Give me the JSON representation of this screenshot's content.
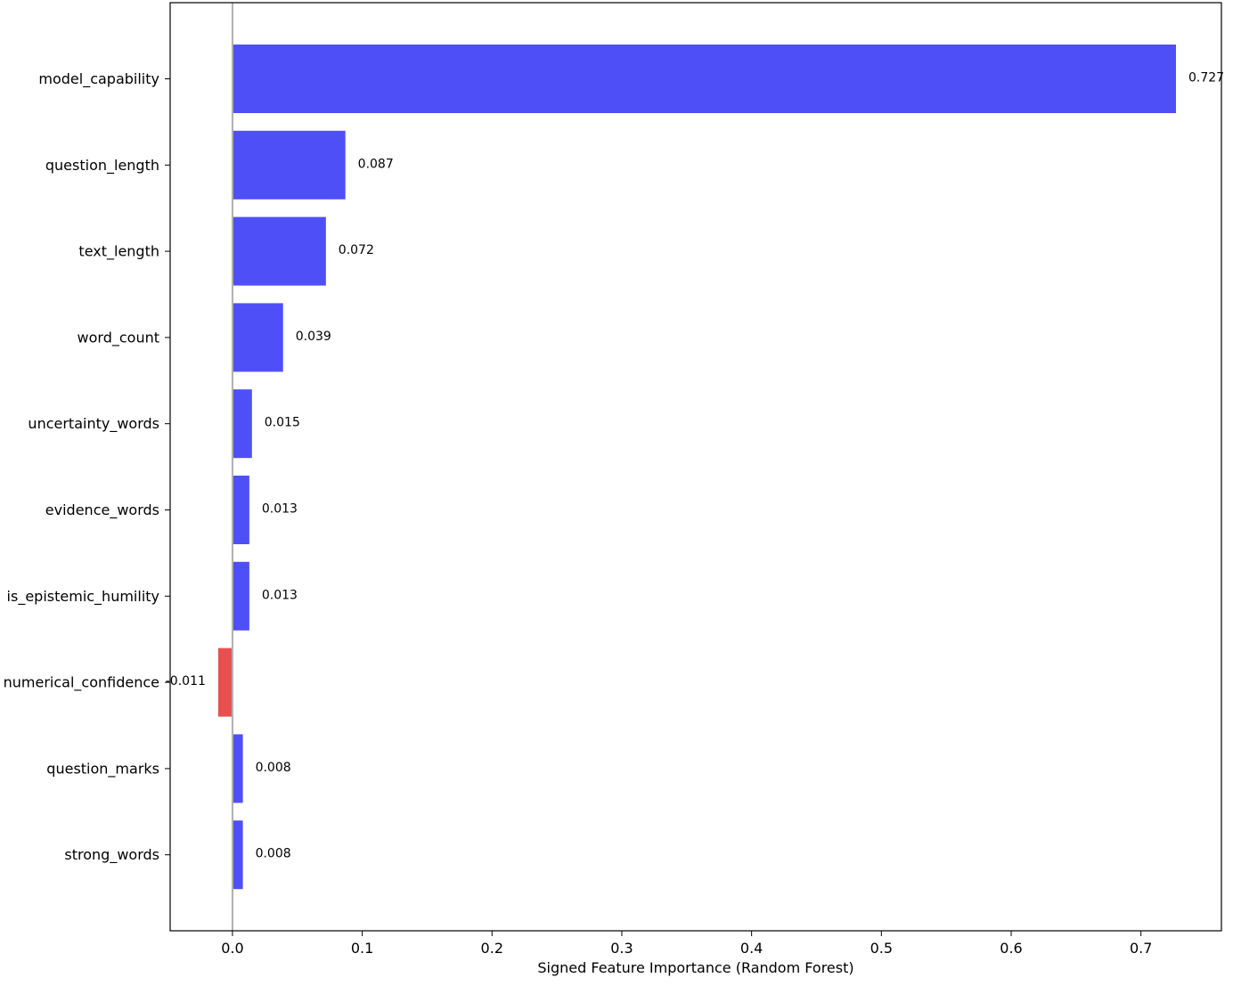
{
  "chart_data": {
    "type": "bar",
    "orientation": "horizontal",
    "categories": [
      "model_capability",
      "question_length",
      "text_length",
      "word_count",
      "uncertainty_words",
      "evidence_words",
      "is_epistemic_humility",
      "numerical_confidence",
      "question_marks",
      "strong_words"
    ],
    "values": [
      0.727,
      0.087,
      0.072,
      0.039,
      0.015,
      0.013,
      0.013,
      -0.011,
      0.008,
      0.008
    ],
    "value_labels": [
      "0.727",
      "0.087",
      "0.072",
      "0.039",
      "0.015",
      "0.013",
      "0.013",
      "-0.011",
      "0.008",
      "0.008"
    ],
    "title": "",
    "xlabel": "Signed Feature Importance (Random Forest)",
    "ylabel": "",
    "xlim": [
      -0.048,
      0.762
    ],
    "xticks": [
      0.0,
      0.1,
      0.2,
      0.3,
      0.4,
      0.5,
      0.6,
      0.7
    ],
    "xtick_labels": [
      "0.0",
      "0.1",
      "0.2",
      "0.3",
      "0.4",
      "0.5",
      "0.6",
      "0.7"
    ],
    "grid": false,
    "zero_line": true,
    "colors": {
      "positive": "#4f4ff7",
      "negative": "#e8504f",
      "zero_line": "#b0b0b0",
      "axes": "#000000"
    }
  }
}
